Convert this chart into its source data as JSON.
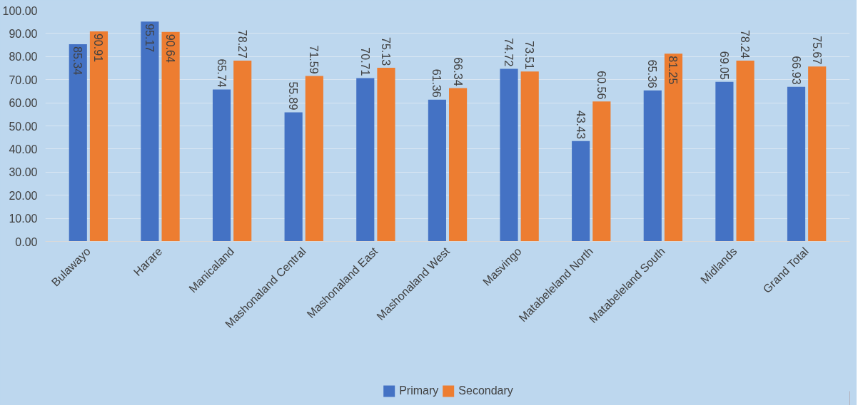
{
  "chart_data": {
    "type": "bar",
    "categories": [
      "Bulawayo",
      "Harare",
      "Manicaland",
      "Mashonaland Central",
      "Mashonaland East",
      "Mashonaland West",
      "Masvingo",
      "Matabeleland North",
      "Matabeleland South",
      "Midlands",
      "Grand Total"
    ],
    "series": [
      {
        "name": "Primary",
        "color": "#4472c4",
        "values": [
          85.34,
          95.17,
          65.74,
          55.89,
          70.71,
          61.36,
          74.72,
          43.43,
          65.36,
          69.05,
          66.93
        ]
      },
      {
        "name": "Secondary",
        "color": "#ed7d31",
        "values": [
          90.91,
          90.64,
          78.27,
          71.59,
          75.13,
          66.34,
          73.51,
          60.56,
          81.25,
          78.24,
          75.67
        ]
      }
    ],
    "ylim": [
      0,
      100
    ],
    "yticks": [
      {
        "value": 0,
        "label": "0.00"
      },
      {
        "value": 10,
        "label": "10.00"
      },
      {
        "value": 20,
        "label": "20.00"
      },
      {
        "value": 30,
        "label": "30.00"
      },
      {
        "value": 40,
        "label": "40.00"
      },
      {
        "value": 50,
        "label": "50.00"
      },
      {
        "value": 60,
        "label": "60.00"
      },
      {
        "value": 70,
        "label": "70.00"
      },
      {
        "value": 80,
        "label": "80.00"
      },
      {
        "value": 90,
        "label": "90.00"
      },
      {
        "value": 100,
        "label": "100.00"
      }
    ],
    "grid": "y",
    "legend": "bottom",
    "data_labels": true
  }
}
